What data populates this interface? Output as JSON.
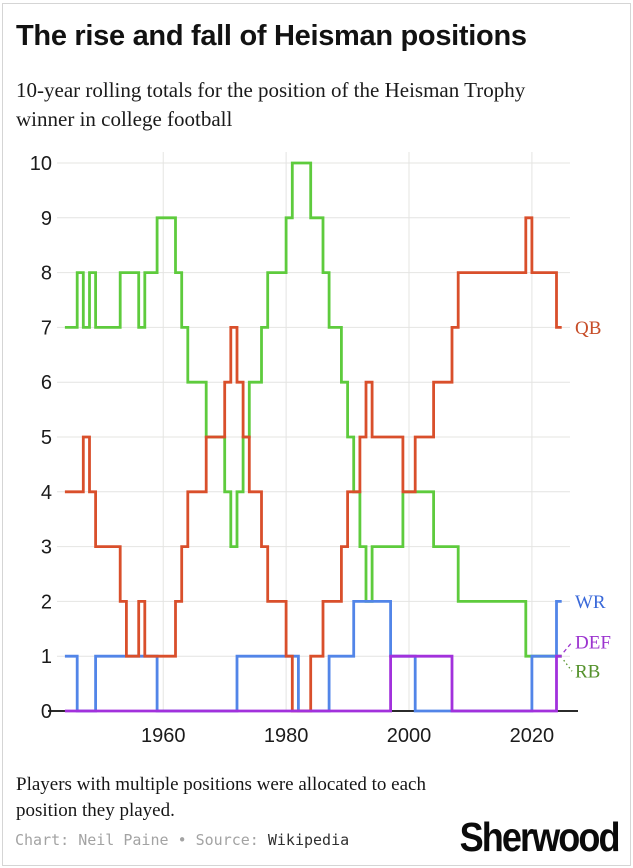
{
  "header": {
    "title": "The rise and fall of Heisman positions",
    "subtitle": "10-year rolling totals for the position of the Heisman Trophy winner in college football"
  },
  "chart_data": {
    "type": "line",
    "step": true,
    "title": "The rise and fall of Heisman positions",
    "xlabel": "",
    "ylabel": "",
    "x_ticks": [
      1960,
      1980,
      2000,
      2020
    ],
    "y_ticks": [
      0,
      1,
      2,
      3,
      4,
      5,
      6,
      7,
      8,
      9,
      10
    ],
    "xlim": [
      1943.2,
      2026.2
    ],
    "ylim": [
      0,
      10
    ],
    "x_start_year": 1944,
    "x_end_year": 2024,
    "grid": true,
    "legend_position": "right-of-line-ends",
    "series": [
      {
        "name": "RB",
        "label": "RB",
        "color": "#5ecb3d",
        "label_color": "#55922c",
        "leader": "dotted",
        "label_dy": 15,
        "steps": [
          [
            1944,
            7
          ],
          [
            1946,
            8
          ],
          [
            1947,
            7
          ],
          [
            1948,
            8
          ],
          [
            1949,
            7
          ],
          [
            1953,
            8
          ],
          [
            1956,
            7
          ],
          [
            1957,
            8
          ],
          [
            1959,
            9
          ],
          [
            1962,
            8
          ],
          [
            1963,
            7
          ],
          [
            1964,
            6
          ],
          [
            1967,
            5
          ],
          [
            1970,
            4
          ],
          [
            1971,
            3
          ],
          [
            1972,
            4
          ],
          [
            1973,
            5
          ],
          [
            1974,
            6
          ],
          [
            1976,
            7
          ],
          [
            1977,
            8
          ],
          [
            1980,
            9
          ],
          [
            1981,
            10
          ],
          [
            1984,
            9
          ],
          [
            1986,
            8
          ],
          [
            1987,
            7
          ],
          [
            1989,
            6
          ],
          [
            1990,
            5
          ],
          [
            1991,
            4
          ],
          [
            1992,
            3
          ],
          [
            1993,
            2
          ],
          [
            1994,
            3
          ],
          [
            1999,
            4
          ],
          [
            2004,
            3
          ],
          [
            2008,
            2
          ],
          [
            2019,
            1
          ]
        ]
      },
      {
        "name": "WR",
        "label": "WR",
        "color": "#5285e8",
        "label_color": "#3a69d9",
        "leader": null,
        "label_dy": 0,
        "steps": [
          [
            1944,
            1
          ],
          [
            1946,
            0
          ],
          [
            1949,
            1
          ],
          [
            1959,
            0
          ],
          [
            1972,
            1
          ],
          [
            1982,
            0
          ],
          [
            1987,
            1
          ],
          [
            1991,
            2
          ],
          [
            1997,
            1
          ],
          [
            2001,
            0
          ],
          [
            2020,
            1
          ],
          [
            2024,
            2
          ]
        ]
      },
      {
        "name": "QB",
        "label": "QB",
        "color": "#d94f2b",
        "label_color": "#c74d28",
        "leader": null,
        "label_dy": 0,
        "steps": [
          [
            1944,
            4
          ],
          [
            1947,
            5
          ],
          [
            1948,
            4
          ],
          [
            1949,
            3
          ],
          [
            1953,
            2
          ],
          [
            1954,
            1
          ],
          [
            1956,
            2
          ],
          [
            1957,
            1
          ],
          [
            1962,
            2
          ],
          [
            1963,
            3
          ],
          [
            1964,
            4
          ],
          [
            1967,
            5
          ],
          [
            1970,
            6
          ],
          [
            1971,
            7
          ],
          [
            1972,
            6
          ],
          [
            1973,
            5
          ],
          [
            1974,
            4
          ],
          [
            1976,
            3
          ],
          [
            1977,
            2
          ],
          [
            1980,
            1
          ],
          [
            1981,
            0
          ],
          [
            1984,
            1
          ],
          [
            1986,
            2
          ],
          [
            1989,
            3
          ],
          [
            1990,
            4
          ],
          [
            1992,
            5
          ],
          [
            1993,
            6
          ],
          [
            1994,
            5
          ],
          [
            1999,
            4
          ],
          [
            2001,
            5
          ],
          [
            2004,
            6
          ],
          [
            2007,
            7
          ],
          [
            2008,
            8
          ],
          [
            2019,
            9
          ],
          [
            2020,
            8
          ],
          [
            2024,
            7
          ]
        ]
      },
      {
        "name": "DEF",
        "label": "DEF",
        "color": "#a231dc",
        "label_color": "#9c34cf",
        "leader": "dashed",
        "label_dy": -14,
        "steps": [
          [
            1944,
            0
          ],
          [
            1997,
            1
          ],
          [
            2007,
            0
          ],
          [
            2024,
            1
          ]
        ]
      }
    ],
    "colors": {
      "grid": "#e4e4e2",
      "axis": "#2b2b2b",
      "tick_label": "#1b1b1b"
    }
  },
  "footer": {
    "note": "Players with multiple positions were allocated to each position they played.",
    "credit_chart_label": "Chart:",
    "credit_chart_value": "Neil Paine",
    "credit_separator": "•",
    "credit_source_label": "Source:",
    "credit_source_value": "Wikipedia",
    "logo": "Sherwood"
  }
}
